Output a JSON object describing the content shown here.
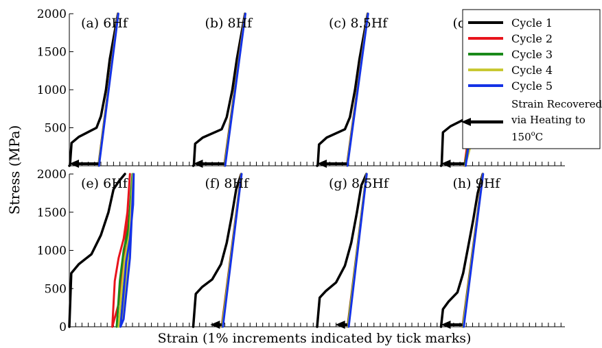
{
  "figure": {
    "ylabel": "Stress (MPa)",
    "xlabel": "Strain (1% increments indicated by tick marks)",
    "yticks": [
      "0",
      "500",
      "1000",
      "1500",
      "2000"
    ]
  },
  "legend": {
    "entries": [
      {
        "label": "Cycle 1",
        "color": "#000000"
      },
      {
        "label": "Cycle 2",
        "color": "#e8141c"
      },
      {
        "label": "Cycle 3",
        "color": "#1a8a1a"
      },
      {
        "label": "Cycle 4",
        "color": "#c8c832"
      },
      {
        "label": "Cycle 5",
        "color": "#1432e6"
      }
    ],
    "arrow_label_lines": [
      "Strain Recovered",
      "via Heating to"
    ],
    "arrow_label_temp_base": "150",
    "arrow_label_temp_sup": "o",
    "arrow_label_temp_unit": "C"
  },
  "chart_data": [
    {
      "type": "line",
      "title": "(a) 6Hf",
      "ylim": [
        0,
        2000
      ],
      "series": [
        {
          "name": "Cycle 1",
          "x": [
            0,
            0.1,
            0.35,
            1.5,
            4.3,
            5.0,
            5.8,
            6.4,
            7.7
          ],
          "y": [
            0,
            5,
            300,
            380,
            500,
            650,
            1000,
            1400,
            2000
          ]
        },
        {
          "name": "Cycle 2",
          "x": [
            4.6,
            7.7
          ],
          "y": [
            0,
            2000
          ]
        },
        {
          "name": "Cycle 3",
          "x": [
            4.62,
            7.72
          ],
          "y": [
            0,
            2000
          ]
        },
        {
          "name": "Cycle 4",
          "x": [
            4.65,
            7.74
          ],
          "y": [
            0,
            2000
          ]
        },
        {
          "name": "Cycle 5",
          "x": [
            4.7,
            7.76
          ],
          "y": [
            0,
            2000
          ]
        }
      ],
      "recovery": {
        "from": 4.6,
        "to": 0
      }
    },
    {
      "type": "line",
      "title": "(b) 8Hf",
      "ylim": [
        0,
        2000
      ],
      "series": [
        {
          "name": "Cycle 1",
          "x": [
            0,
            0.1,
            0.3,
            1.5,
            4.5,
            5.3,
            6.2,
            6.9,
            8.2
          ],
          "y": [
            0,
            5,
            290,
            370,
            480,
            640,
            1000,
            1400,
            2000
          ]
        },
        {
          "name": "Cycle 2",
          "x": [
            4.9,
            8.2
          ],
          "y": [
            0,
            2000
          ]
        },
        {
          "name": "Cycle 3",
          "x": [
            4.95,
            8.22
          ],
          "y": [
            0,
            2000
          ]
        },
        {
          "name": "Cycle 4",
          "x": [
            5.0,
            8.24
          ],
          "y": [
            0,
            2000
          ]
        },
        {
          "name": "Cycle 5",
          "x": [
            5.05,
            8.26
          ],
          "y": [
            0,
            2000
          ]
        }
      ],
      "recovery": {
        "from": 4.9,
        "to": 0
      }
    },
    {
      "type": "line",
      "title": "(c) 8.5Hf",
      "ylim": [
        0,
        2000
      ],
      "series": [
        {
          "name": "Cycle 1",
          "x": [
            0,
            0.1,
            0.3,
            1.5,
            4.4,
            5.2,
            6.0,
            6.7,
            8.0
          ],
          "y": [
            0,
            5,
            280,
            370,
            480,
            640,
            1000,
            1400,
            2000
          ]
        },
        {
          "name": "Cycle 2",
          "x": [
            4.7,
            8.0
          ],
          "y": [
            0,
            2000
          ]
        },
        {
          "name": "Cycle 3",
          "x": [
            4.73,
            8.02
          ],
          "y": [
            0,
            2000
          ]
        },
        {
          "name": "Cycle 4",
          "x": [
            4.76,
            8.04
          ],
          "y": [
            0,
            2000
          ]
        },
        {
          "name": "Cycle 5",
          "x": [
            4.8,
            8.06
          ],
          "y": [
            0,
            2000
          ]
        }
      ],
      "recovery": {
        "from": 4.7,
        "to": 0
      }
    },
    {
      "type": "line",
      "title": "(d) 9Hf",
      "ylim": [
        0,
        2000
      ],
      "series": [
        {
          "name": "Cycle 1",
          "x": [
            0,
            0.1,
            0.3,
            1.5,
            3.9,
            4.8,
            5.6,
            6.5,
            7.4
          ],
          "y": [
            0,
            5,
            440,
            520,
            620,
            800,
            1100,
            1500,
            2000
          ]
        },
        {
          "name": "Cycle 2",
          "x": [
            3.7,
            4.2,
            4.8,
            7.4
          ],
          "y": [
            0,
            300,
            650,
            2000
          ]
        },
        {
          "name": "Cycle 3",
          "x": [
            3.75,
            4.5,
            5.1,
            7.42
          ],
          "y": [
            0,
            350,
            700,
            2000
          ]
        },
        {
          "name": "Cycle 4",
          "x": [
            3.8,
            4.8,
            5.5,
            7.5
          ],
          "y": [
            0,
            300,
            900,
            2000
          ]
        },
        {
          "name": "Cycle 5",
          "x": [
            3.9,
            4.6,
            5.2,
            7.45
          ],
          "y": [
            0,
            400,
            800,
            2000
          ]
        }
      ],
      "recovery": {
        "from": 3.7,
        "to": 0
      }
    },
    {
      "type": "line",
      "title": "(e) 6Hf",
      "ylim": [
        0,
        2000
      ],
      "series": [
        {
          "name": "Cycle 1",
          "x": [
            0,
            0.3,
            1.5,
            3.5,
            5.0,
            6.2,
            7.0,
            7.8,
            8.8
          ],
          "y": [
            0,
            700,
            820,
            950,
            1200,
            1500,
            1800,
            1900,
            2000
          ]
        },
        {
          "name": "Cycle 2",
          "x": [
            6.8,
            7.2,
            7.8,
            8.6,
            9.2,
            9.6,
            9.0,
            7.8,
            6.8
          ],
          "y": [
            0,
            600,
            900,
            1150,
            1500,
            2000,
            1200,
            300,
            0
          ]
        },
        {
          "name": "Cycle 3",
          "x": [
            7.5,
            8.0,
            8.6,
            9.4,
            9.9,
            10.0,
            9.2,
            8.2,
            7.5
          ],
          "y": [
            0,
            600,
            1000,
            1300,
            1700,
            2000,
            1100,
            150,
            0
          ]
        },
        {
          "name": "Cycle 4",
          "x": [
            7.8,
            8.3,
            8.8,
            9.5,
            10.0,
            10.1,
            9.4,
            8.4,
            7.8
          ],
          "y": [
            0,
            500,
            900,
            1200,
            1600,
            2000,
            1000,
            100,
            0
          ]
        },
        {
          "name": "Cycle 5",
          "x": [
            8.1,
            8.6,
            9.0,
            9.6,
            10.1,
            10.2,
            9.6,
            8.6,
            8.1
          ],
          "y": [
            0,
            450,
            850,
            1150,
            1600,
            2000,
            900,
            100,
            0
          ]
        }
      ]
    },
    {
      "type": "line",
      "title": "(f) 8Hf",
      "ylim": [
        0,
        2000
      ],
      "series": [
        {
          "name": "Cycle 1",
          "x": [
            0,
            0.4,
            1.4,
            3.0,
            4.4,
            5.3,
            6.1,
            6.8,
            7.6
          ],
          "y": [
            0,
            430,
            520,
            620,
            820,
            1100,
            1450,
            1800,
            2000
          ]
        },
        {
          "name": "Cycle 2",
          "x": [
            4.5,
            7.6
          ],
          "y": [
            0,
            2000
          ]
        },
        {
          "name": "Cycle 3",
          "x": [
            4.55,
            7.62
          ],
          "y": [
            0,
            2000
          ]
        },
        {
          "name": "Cycle 4",
          "x": [
            4.6,
            7.64
          ],
          "y": [
            0,
            2000
          ]
        },
        {
          "name": "Cycle 5",
          "x": [
            4.7,
            7.66
          ],
          "y": [
            0,
            2000
          ]
        }
      ],
      "recovery": {
        "from": 4.5,
        "to": 2.7
      }
    },
    {
      "type": "line",
      "title": "(g) 8.5Hf",
      "ylim": [
        0,
        2000
      ],
      "series": [
        {
          "name": "Cycle 1",
          "x": [
            0,
            0.4,
            1.4,
            3.0,
            4.4,
            5.4,
            6.3,
            7.0,
            7.8
          ],
          "y": [
            0,
            380,
            470,
            580,
            800,
            1100,
            1500,
            1850,
            2000
          ]
        },
        {
          "name": "Cycle 2",
          "x": [
            4.8,
            7.8
          ],
          "y": [
            0,
            2000
          ]
        },
        {
          "name": "Cycle 3",
          "x": [
            4.85,
            7.82
          ],
          "y": [
            0,
            2000
          ]
        },
        {
          "name": "Cycle 4",
          "x": [
            4.9,
            7.84
          ],
          "y": [
            0,
            2000
          ]
        },
        {
          "name": "Cycle 5",
          "x": [
            5.0,
            7.86
          ],
          "y": [
            0,
            2000
          ]
        }
      ],
      "recovery": {
        "from": 4.8,
        "to": 2.9
      }
    },
    {
      "type": "line",
      "title": "(h) 9Hf",
      "ylim": [
        0,
        2000
      ],
      "series": [
        {
          "name": "Cycle 1",
          "x": [
            0,
            0.3,
            1.2,
            2.6,
            3.5,
            4.3,
            5.1,
            5.8,
            6.6
          ],
          "y": [
            0,
            230,
            330,
            450,
            700,
            1050,
            1400,
            1750,
            2000
          ]
        },
        {
          "name": "Cycle 2",
          "x": [
            3.4,
            6.6
          ],
          "y": [
            0,
            2000
          ]
        },
        {
          "name": "Cycle 3",
          "x": [
            3.45,
            6.62
          ],
          "y": [
            0,
            2000
          ]
        },
        {
          "name": "Cycle 4",
          "x": [
            3.5,
            6.64
          ],
          "y": [
            0,
            2000
          ]
        },
        {
          "name": "Cycle 5",
          "x": [
            3.6,
            6.66
          ],
          "y": [
            0,
            2000
          ]
        }
      ],
      "recovery": {
        "from": 3.4,
        "to": 0
      }
    }
  ]
}
